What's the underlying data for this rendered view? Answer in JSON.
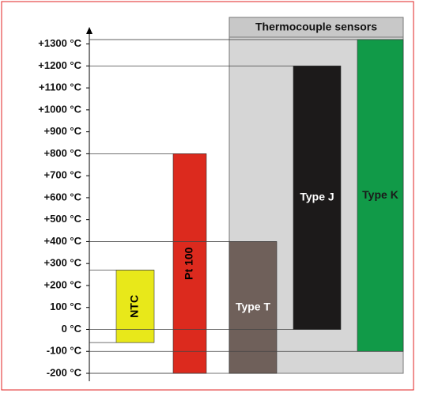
{
  "chart_data": {
    "type": "floating-bar",
    "panel_title": "Thermocouple sensors",
    "ylim": [
      -200,
      1300
    ],
    "yticks": [
      {
        "value": -200,
        "label": "-200 °C"
      },
      {
        "value": -100,
        "label": "-100 °C"
      },
      {
        "value": 0,
        "label": "0 °C"
      },
      {
        "value": 100,
        "label": "100 °C"
      },
      {
        "value": 200,
        "label": "+200 °C"
      },
      {
        "value": 300,
        "label": "+300 °C"
      },
      {
        "value": 400,
        "label": "+400 °C"
      },
      {
        "value": 500,
        "label": "+500 °C"
      },
      {
        "value": 600,
        "label": "+600 °C"
      },
      {
        "value": 700,
        "label": "+700 °C"
      },
      {
        "value": 800,
        "label": "+800 °C"
      },
      {
        "value": 900,
        "label": "+900 °C"
      },
      {
        "value": 1000,
        "label": "+1000 °C"
      },
      {
        "value": 1100,
        "label": "+1100 °C"
      },
      {
        "value": 1200,
        "label": "+1200 °C"
      },
      {
        "value": 1300,
        "label": "+1300 °C"
      }
    ],
    "bars": [
      {
        "name": "NTC",
        "color": "#e8e81a",
        "label_color": "#000000",
        "rotated": true,
        "low": -60,
        "high": 270
      },
      {
        "name": "Pt 100",
        "color": "#dc2a1e",
        "label_color": "#000000",
        "rotated": true,
        "low": -200,
        "high": 800
      },
      {
        "name": "Type T",
        "color": "#6f605a",
        "label_color": "#ffffff",
        "rotated": false,
        "low": -200,
        "high": 400
      },
      {
        "name": "Type J",
        "color": "#1c1a1a",
        "label_color": "#ffffff",
        "rotated": false,
        "low": 0,
        "high": 1200
      },
      {
        "name": "Type K",
        "color": "#119a48",
        "label_color": "#1a1a1a",
        "rotated": false,
        "low": -100,
        "high": 1320
      }
    ]
  }
}
